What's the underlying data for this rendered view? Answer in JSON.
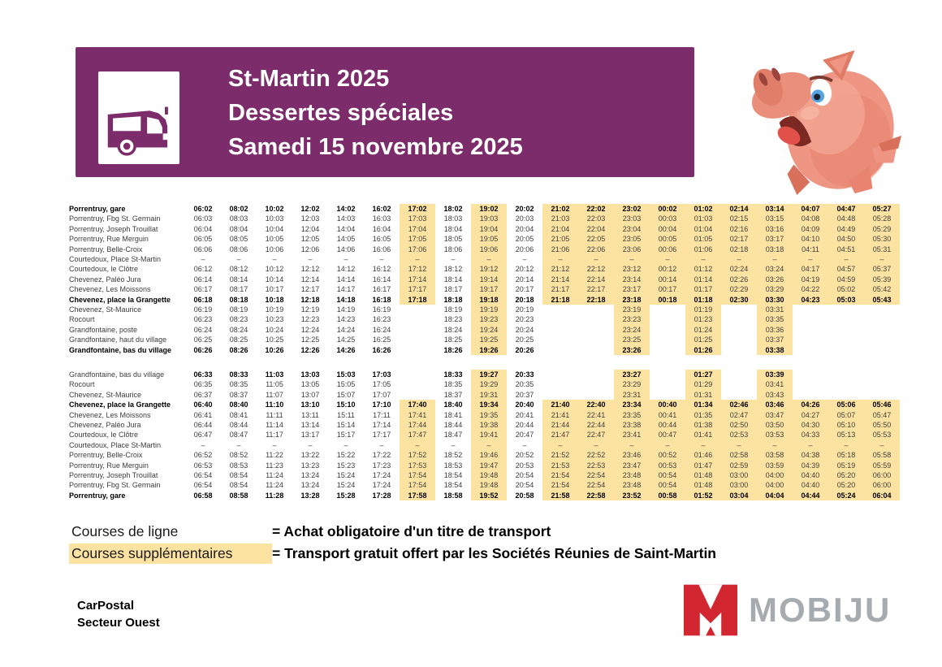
{
  "header": {
    "line1": "St-Martin 2025",
    "line2": "Dessertes spéciales",
    "line3": "Samedi 15 novembre 2025"
  },
  "icons": {
    "bus": "bus-pictogram",
    "pig": "pig-mascot-illustration",
    "logo_m": "mobiju-m-monogram"
  },
  "colors": {
    "banner_purple": "#7c2c6a",
    "highlight_yellow": "#fce3a1",
    "logo_red": "#d22630",
    "logo_gray": "#a6abaf"
  },
  "highlight_cols": [
    6,
    8,
    10,
    11,
    12,
    13,
    14,
    15,
    16,
    17,
    18,
    19
  ],
  "tables": [
    {
      "rows": [
        {
          "stop": "Porrentruy, gare",
          "bold": true,
          "times": [
            "06:02",
            "08:02",
            "10:02",
            "12:02",
            "14:02",
            "16:02",
            "17:02",
            "18:02",
            "19:02",
            "20:02",
            "21:02",
            "22:02",
            "23:02",
            "00:02",
            "01:02",
            "02:14",
            "03:14",
            "04:07",
            "04:47",
            "05:27"
          ]
        },
        {
          "stop": "Porrentruy, Fbg St. Germain",
          "times": [
            "06:03",
            "08:03",
            "10:03",
            "12:03",
            "14:03",
            "16:03",
            "17:03",
            "18:03",
            "19:03",
            "20:03",
            "21:03",
            "22:03",
            "23:03",
            "00:03",
            "01:03",
            "02:15",
            "03:15",
            "04:08",
            "04:48",
            "05:28"
          ]
        },
        {
          "stop": "Porrentruy, Joseph Trouillat",
          "times": [
            "06:04",
            "08:04",
            "10:04",
            "12:04",
            "14:04",
            "16:04",
            "17:04",
            "18:04",
            "19:04",
            "20:04",
            "21:04",
            "22:04",
            "23:04",
            "00:04",
            "01:04",
            "02:16",
            "03:16",
            "04:09",
            "04:49",
            "05:29"
          ]
        },
        {
          "stop": "Porrentruy, Rue Merguin",
          "times": [
            "06:05",
            "08:05",
            "10:05",
            "12:05",
            "14:05",
            "16:05",
            "17:05",
            "18:05",
            "19:05",
            "20:05",
            "21:05",
            "22:05",
            "23:05",
            "00:05",
            "01:05",
            "02:17",
            "03:17",
            "04:10",
            "04:50",
            "05:30"
          ]
        },
        {
          "stop": "Porrentruy, Belle-Croix",
          "times": [
            "06:06",
            "08:06",
            "10:06",
            "12:06",
            "14:06",
            "16:06",
            "17:06",
            "18:06",
            "19:06",
            "20:06",
            "21:06",
            "22:06",
            "23:06",
            "00:06",
            "01:06",
            "02:18",
            "03:18",
            "04:11",
            "04:51",
            "05:31"
          ]
        },
        {
          "stop": "Courtedoux, Place St-Martin",
          "times": [
            "–",
            "–",
            "–",
            "–",
            "–",
            "–",
            "–",
            "–",
            "–",
            "–",
            "–",
            "–",
            "–",
            "–",
            "–",
            "–",
            "–",
            "–",
            "–",
            "–"
          ]
        },
        {
          "stop": "Courtedoux, le Clôtre",
          "times": [
            "06:12",
            "08:12",
            "10:12",
            "12:12",
            "14:12",
            "16:12",
            "17:12",
            "18:12",
            "19:12",
            "20:12",
            "21:12",
            "22:12",
            "23:12",
            "00:12",
            "01:12",
            "02:24",
            "03:24",
            "04:17",
            "04:57",
            "05:37"
          ]
        },
        {
          "stop": "Chevenez, Paléo Jura",
          "times": [
            "06:14",
            "08:14",
            "10:14",
            "12:14",
            "14:14",
            "16:14",
            "17:14",
            "18:14",
            "19:14",
            "20:14",
            "21:14",
            "22:14",
            "23:14",
            "00:14",
            "01:14",
            "02:26",
            "03:26",
            "04:19",
            "04:59",
            "05:39"
          ]
        },
        {
          "stop": "Chevenez, Les Moissons",
          "times": [
            "06:17",
            "08:17",
            "10:17",
            "12:17",
            "14:17",
            "16:17",
            "17:17",
            "18:17",
            "19:17",
            "20:17",
            "21:17",
            "22:17",
            "23:17",
            "00:17",
            "01:17",
            "02:29",
            "03:29",
            "04:22",
            "05:02",
            "05:42"
          ]
        },
        {
          "stop": "Chevenez, place la Grangette",
          "bold": true,
          "times": [
            "06:18",
            "08:18",
            "10:18",
            "12:18",
            "14:18",
            "16:18",
            "17:18",
            "18:18",
            "19:18",
            "20:18",
            "21:18",
            "22:18",
            "23:18",
            "00:18",
            "01:18",
            "02:30",
            "03:30",
            "04:23",
            "05:03",
            "05:43"
          ]
        },
        {
          "stop": "Chevenez, St-Maurice",
          "times": [
            "06:19",
            "08:19",
            "10:19",
            "12:19",
            "14:19",
            "16:19",
            "",
            "18:19",
            "19:19",
            "20:19",
            "",
            "",
            "23:19",
            "",
            "01:19",
            "",
            "03:31",
            "",
            "",
            ""
          ]
        },
        {
          "stop": "Rocourt",
          "times": [
            "06:23",
            "08:23",
            "10:23",
            "12:23",
            "14:23",
            "16:23",
            "",
            "18:23",
            "19:23",
            "20:23",
            "",
            "",
            "23:23",
            "",
            "01:23",
            "",
            "03:35",
            "",
            "",
            ""
          ]
        },
        {
          "stop": "Grandfontaine, poste",
          "times": [
            "06:24",
            "08:24",
            "10:24",
            "12:24",
            "14:24",
            "16:24",
            "",
            "18:24",
            "19:24",
            "20:24",
            "",
            "",
            "23:24",
            "",
            "01:24",
            "",
            "03:36",
            "",
            "",
            ""
          ]
        },
        {
          "stop": "Grandfontaine, haut du village",
          "times": [
            "06:25",
            "08:25",
            "10:25",
            "12:25",
            "14:25",
            "16:25",
            "",
            "18:25",
            "19:25",
            "20:25",
            "",
            "",
            "23:25",
            "",
            "01:25",
            "",
            "03:37",
            "",
            "",
            ""
          ]
        },
        {
          "stop": "Grandfontaine, bas du village",
          "bold": true,
          "times": [
            "06:26",
            "08:26",
            "10:26",
            "12:26",
            "14:26",
            "16:26",
            "",
            "18:26",
            "19:26",
            "20:26",
            "",
            "",
            "23:26",
            "",
            "01:26",
            "",
            "03:38",
            "",
            "",
            ""
          ]
        }
      ]
    },
    {
      "rows": [
        {
          "stop": "Grandfontaine, bas du village",
          "times_bold": true,
          "times": [
            "06:33",
            "08:33",
            "11:03",
            "13:03",
            "15:03",
            "17:03",
            "",
            "18:33",
            "19:27",
            "20:33",
            "",
            "",
            "23:27",
            "",
            "01:27",
            "",
            "03:39",
            "",
            "",
            ""
          ]
        },
        {
          "stop": "Rocourt",
          "times": [
            "06:35",
            "08:35",
            "11:05",
            "13:05",
            "15:05",
            "17:05",
            "",
            "18:35",
            "19:29",
            "20:35",
            "",
            "",
            "23:29",
            "",
            "01:29",
            "",
            "03:41",
            "",
            "",
            ""
          ]
        },
        {
          "stop": "Chevenez, St-Maurice",
          "times": [
            "06:37",
            "08:37",
            "11:07",
            "13:07",
            "15:07",
            "17:07",
            "",
            "18:37",
            "19:31",
            "20:37",
            "",
            "",
            "23:31",
            "",
            "01:31",
            "",
            "03:43",
            "",
            "",
            ""
          ]
        },
        {
          "stop": "Chevenez, place la Grangette",
          "bold": true,
          "times": [
            "06:40",
            "08:40",
            "11:10",
            "13:10",
            "15:10",
            "17:10",
            "17:40",
            "18:40",
            "19:34",
            "20:40",
            "21:40",
            "22:40",
            "23:34",
            "00:40",
            "01:34",
            "02:46",
            "03:46",
            "04:26",
            "05:06",
            "05:46"
          ]
        },
        {
          "stop": "Chevenez, Les Moissons",
          "times": [
            "06:41",
            "08:41",
            "11:11",
            "13:11",
            "15:11",
            "17:11",
            "17:41",
            "18:41",
            "19:35",
            "20:41",
            "21:41",
            "22:41",
            "23:35",
            "00:41",
            "01:35",
            "02:47",
            "03:47",
            "04:27",
            "05:07",
            "05:47"
          ]
        },
        {
          "stop": "Chevenez, Paléo Jura",
          "times": [
            "06:44",
            "08:44",
            "11:14",
            "13:14",
            "15:14",
            "17:14",
            "17:44",
            "18:44",
            "19:38",
            "20:44",
            "21:44",
            "22:44",
            "23:38",
            "00:44",
            "01:38",
            "02:50",
            "03:50",
            "04:30",
            "05:10",
            "05:50"
          ]
        },
        {
          "stop": "Courtedoux, le Clôtre",
          "times": [
            "06:47",
            "08:47",
            "11:17",
            "13:17",
            "15:17",
            "17:17",
            "17:47",
            "18:47",
            "19:41",
            "20:47",
            "21:47",
            "22:47",
            "23:41",
            "00:47",
            "01:41",
            "02:53",
            "03:53",
            "04:33",
            "05:13",
            "05:53"
          ]
        },
        {
          "stop": "Courtedoux, Place St-Martin",
          "times": [
            "–",
            "–",
            "–",
            "–",
            "–",
            "–",
            "–",
            "–",
            "–",
            "–",
            "–",
            "–",
            "–",
            "–",
            "–",
            "–",
            "–",
            "–",
            "–",
            "–"
          ]
        },
        {
          "stop": "Porrentruy, Belle-Croix",
          "times": [
            "06:52",
            "08:52",
            "11:22",
            "13:22",
            "15:22",
            "17:22",
            "17:52",
            "18:52",
            "19:46",
            "20:52",
            "21:52",
            "22:52",
            "23:46",
            "00:52",
            "01:46",
            "02:58",
            "03:58",
            "04:38",
            "05:18",
            "05:58"
          ]
        },
        {
          "stop": "Porrentruy, Rue Merguin",
          "times": [
            "06:53",
            "08:53",
            "11:23",
            "13:23",
            "15:23",
            "17:23",
            "17:53",
            "18:53",
            "19:47",
            "20:53",
            "21:53",
            "22:53",
            "23:47",
            "00:53",
            "01:47",
            "02:59",
            "03:59",
            "04:39",
            "05:19",
            "05:59"
          ]
        },
        {
          "stop": "Porrentruy, Joseph Trouillat",
          "times": [
            "06:54",
            "08:54",
            "11:24",
            "13:24",
            "15:24",
            "17:24",
            "17:54",
            "18:54",
            "19:48",
            "20:54",
            "21:54",
            "22:54",
            "23:48",
            "00:54",
            "01:48",
            "03:00",
            "04:00",
            "04:40",
            "05:20",
            "06:00"
          ]
        },
        {
          "stop": "Porrentruy, Fbg St. Germain",
          "times": [
            "06:54",
            "08:54",
            "11:24",
            "13:24",
            "15:24",
            "17:24",
            "17:54",
            "18:54",
            "19:48",
            "20:54",
            "21:54",
            "22:54",
            "23:48",
            "00:54",
            "01:48",
            "03:00",
            "04:00",
            "04:40",
            "05:20",
            "06:00"
          ]
        },
        {
          "stop": "Porrentruy, gare",
          "bold": true,
          "times": [
            "06:58",
            "08:58",
            "11:28",
            "13:28",
            "15:28",
            "17:28",
            "17:58",
            "18:58",
            "19:52",
            "20:58",
            "21:58",
            "22:58",
            "23:52",
            "00:58",
            "01:52",
            "03:04",
            "04:04",
            "04:44",
            "05:24",
            "06:04"
          ]
        }
      ]
    }
  ],
  "legend": {
    "line1": {
      "label": "Courses de ligne",
      "desc": "= Achat obligatoire d'un titre de transport"
    },
    "line2": {
      "label": "Courses supplémentaires",
      "desc": "= Transport gratuit offert par les Sociétés Réunies de Saint-Martin"
    }
  },
  "footer": {
    "operator_line1": "CarPostal",
    "operator_line2": "Secteur Ouest",
    "logo_text": "MOBIJU"
  }
}
